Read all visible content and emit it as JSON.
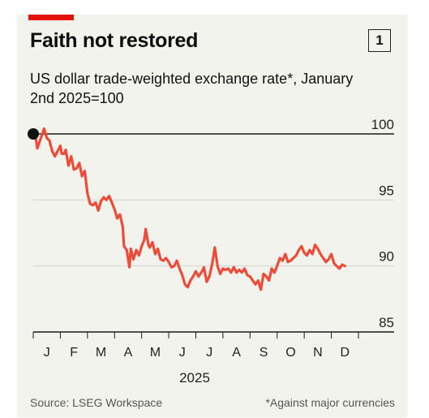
{
  "header": {
    "title": "Faith not restored",
    "badge": "1",
    "subtitle": "US dollar trade-weighted exchange rate*, January 2nd 2025=100"
  },
  "footer": {
    "source": "Source: LSEG Workspace",
    "note": "*Against major currencies"
  },
  "colors": {
    "accent": "#e3120b",
    "line": "#ef4b39",
    "background": "#f3f3ee"
  },
  "chart_data": {
    "type": "line",
    "title": "Faith not restored",
    "ylim": [
      85,
      100
    ],
    "yticks": [
      100,
      95,
      90,
      85
    ],
    "xlim": [
      0,
      12.3
    ],
    "x_tick_labels": [
      "J",
      "F",
      "M",
      "A",
      "M",
      "J",
      "J",
      "A",
      "S",
      "O",
      "N",
      "D"
    ],
    "year_label": "2025",
    "grid": true,
    "series": [
      {
        "values": [
          [
            0,
            100
          ],
          [
            0.1,
            99.6
          ],
          [
            0.15,
            98.9
          ],
          [
            0.25,
            99.5
          ],
          [
            0.4,
            100.4
          ],
          [
            0.5,
            99.7
          ],
          [
            0.6,
            99.5
          ],
          [
            0.7,
            98.7
          ],
          [
            0.8,
            98.3
          ],
          [
            0.9,
            98.7
          ],
          [
            1.0,
            99.1
          ],
          [
            1.05,
            98.5
          ],
          [
            1.15,
            98.5
          ],
          [
            1.2,
            98.8
          ],
          [
            1.3,
            97.6
          ],
          [
            1.4,
            98.3
          ],
          [
            1.5,
            97.3
          ],
          [
            1.6,
            97.4
          ],
          [
            1.7,
            97.8
          ],
          [
            1.8,
            96.8
          ],
          [
            1.9,
            97.2
          ],
          [
            2.0,
            95.5
          ],
          [
            2.1,
            94.7
          ],
          [
            2.2,
            94.6
          ],
          [
            2.3,
            94.8
          ],
          [
            2.4,
            94.2
          ],
          [
            2.5,
            94.9
          ],
          [
            2.6,
            95.2
          ],
          [
            2.7,
            95.0
          ],
          [
            2.8,
            95.3
          ],
          [
            2.9,
            94.8
          ],
          [
            3.0,
            94.3
          ],
          [
            3.1,
            93.6
          ],
          [
            3.2,
            93.9
          ],
          [
            3.3,
            93.0
          ],
          [
            3.35,
            91.5
          ],
          [
            3.45,
            91.2
          ],
          [
            3.55,
            89.9
          ],
          [
            3.6,
            91.3
          ],
          [
            3.7,
            90.5
          ],
          [
            3.8,
            91.2
          ],
          [
            3.9,
            90.8
          ],
          [
            4.0,
            91.5
          ],
          [
            4.1,
            92.0
          ],
          [
            4.15,
            92.8
          ],
          [
            4.25,
            91.6
          ],
          [
            4.3,
            91.4
          ],
          [
            4.4,
            91.8
          ],
          [
            4.5,
            90.9
          ],
          [
            4.6,
            91.3
          ],
          [
            4.7,
            90.5
          ],
          [
            4.8,
            90.4
          ],
          [
            4.9,
            90.6
          ],
          [
            5.0,
            90.3
          ],
          [
            5.1,
            89.9
          ],
          [
            5.2,
            90.0
          ],
          [
            5.3,
            90.4
          ],
          [
            5.4,
            89.8
          ],
          [
            5.5,
            89.3
          ],
          [
            5.6,
            88.6
          ],
          [
            5.7,
            88.4
          ],
          [
            5.8,
            88.9
          ],
          [
            5.9,
            89.2
          ],
          [
            6.0,
            89.6
          ],
          [
            6.1,
            89.2
          ],
          [
            6.2,
            89.5
          ],
          [
            6.3,
            89.9
          ],
          [
            6.4,
            88.8
          ],
          [
            6.5,
            89.2
          ],
          [
            6.6,
            90.1
          ],
          [
            6.7,
            91.4
          ],
          [
            6.8,
            90.0
          ],
          [
            6.9,
            89.4
          ],
          [
            7.0,
            89.8
          ],
          [
            7.1,
            89.7
          ],
          [
            7.2,
            89.8
          ],
          [
            7.3,
            89.5
          ],
          [
            7.4,
            89.9
          ],
          [
            7.5,
            89.5
          ],
          [
            7.6,
            89.7
          ],
          [
            7.7,
            89.5
          ],
          [
            7.8,
            89.8
          ],
          [
            7.9,
            89.3
          ],
          [
            8.0,
            89.2
          ],
          [
            8.1,
            88.9
          ],
          [
            8.2,
            88.6
          ],
          [
            8.3,
            88.9
          ],
          [
            8.4,
            88.2
          ],
          [
            8.5,
            89.4
          ],
          [
            8.6,
            89.2
          ],
          [
            8.7,
            88.9
          ],
          [
            8.8,
            89.8
          ],
          [
            8.9,
            89.5
          ],
          [
            9.0,
            90.0
          ],
          [
            9.1,
            90.6
          ],
          [
            9.2,
            90.4
          ],
          [
            9.3,
            90.9
          ],
          [
            9.4,
            90.3
          ],
          [
            9.5,
            90.4
          ],
          [
            9.6,
            90.6
          ],
          [
            9.7,
            90.8
          ],
          [
            9.8,
            91.2
          ],
          [
            9.9,
            91.5
          ],
          [
            10.0,
            91.0
          ],
          [
            10.1,
            90.8
          ],
          [
            10.2,
            91.2
          ],
          [
            10.3,
            90.9
          ],
          [
            10.4,
            91.6
          ],
          [
            10.5,
            91.3
          ],
          [
            10.6,
            90.9
          ],
          [
            10.7,
            90.6
          ],
          [
            10.8,
            90.3
          ],
          [
            10.9,
            90.5
          ],
          [
            11.0,
            90.9
          ],
          [
            11.1,
            90.2
          ],
          [
            11.2,
            90.0
          ],
          [
            11.3,
            89.8
          ],
          [
            11.4,
            90.1
          ],
          [
            11.5,
            90.0
          ]
        ]
      }
    ]
  }
}
